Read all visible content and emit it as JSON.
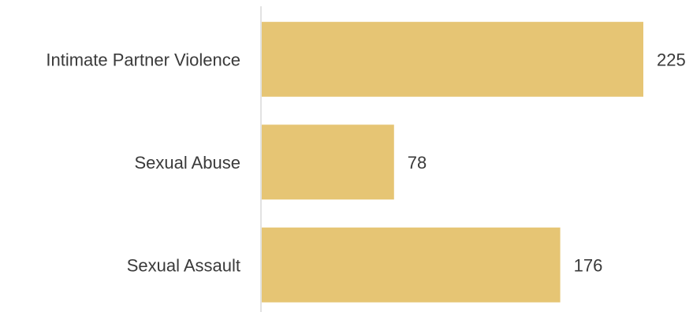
{
  "chart_data": {
    "type": "bar",
    "orientation": "horizontal",
    "categories": [
      "Intimate Partner Violence",
      "Sexual Abuse",
      "Sexual Assault"
    ],
    "values": [
      225,
      78,
      176
    ],
    "data_labels": [
      "225",
      "78",
      "176"
    ],
    "xlim": [
      0,
      225
    ],
    "grid": false,
    "legend": "none",
    "bar_color": "#E6C574",
    "axis_color": "#D9D9D9"
  }
}
